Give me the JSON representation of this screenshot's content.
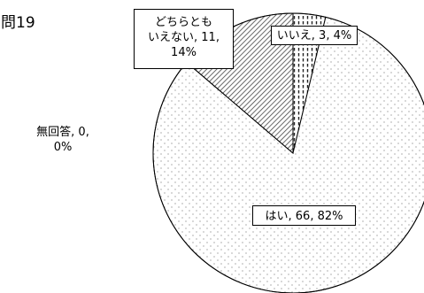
{
  "question_title": "問19",
  "chart_data": {
    "type": "pie",
    "title": "",
    "start_angle_deg": 0,
    "direction": "clockwise",
    "slices": [
      {
        "label": "いいえ",
        "value": 3,
        "percent": "4%",
        "pattern": "dashed-vertical"
      },
      {
        "label": "はい",
        "value": 66,
        "percent": "82%",
        "pattern": "dotted"
      },
      {
        "label": "無回答",
        "value": 0,
        "percent": "0%",
        "pattern": "solid-black"
      },
      {
        "label": "どちらとも いえない",
        "value": 11,
        "percent": "14%",
        "pattern": "diagonal-hatch"
      }
    ],
    "data_labels": [
      {
        "lines": [
          "いいえ, 3, 4%"
        ]
      },
      {
        "lines": [
          "はい, 66, 82%"
        ]
      },
      {
        "lines": [
          "無回答, 0,",
          "0%"
        ]
      },
      {
        "lines": [
          "どちらとも",
          "いえない, 11,",
          "14%"
        ]
      }
    ],
    "legend": "none",
    "colors": {
      "outline": "#000000",
      "background": "#ffffff",
      "pattern": "#555555"
    }
  }
}
